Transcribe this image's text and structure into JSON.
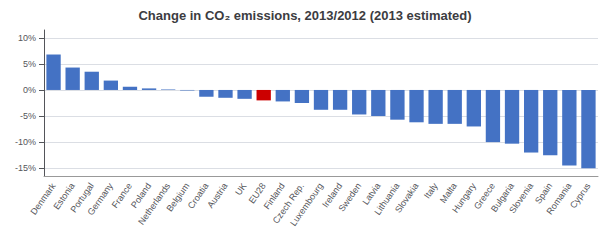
{
  "chart_data": {
    "type": "bar",
    "title": "Change in CO₂ emissions, 2013/2012 (2013 estimated)",
    "categories": [
      "Denmark",
      "Estonia",
      "Portugal",
      "Germany",
      "France",
      "Poland",
      "Netherlands",
      "Belgium",
      "Croatia",
      "Austria",
      "UK",
      "EU28",
      "Finland",
      "Czech Rep.",
      "Luxembourg",
      "Ireland",
      "Sweden",
      "Latvia",
      "Lithuania",
      "Slovakia",
      "Italy",
      "Malta",
      "Hungary",
      "Greece",
      "Bulgaria",
      "Slovenia",
      "Spain",
      "Romania",
      "Cyprus"
    ],
    "values": [
      6.8,
      4.3,
      3.5,
      1.8,
      0.6,
      0.3,
      0.1,
      -0.1,
      -1.3,
      -1.5,
      -1.7,
      -2.0,
      -2.2,
      -2.5,
      -3.8,
      -3.8,
      -4.7,
      -5.0,
      -5.7,
      -6.2,
      -6.5,
      -6.5,
      -7.0,
      -10.0,
      -10.3,
      -12.0,
      -12.5,
      -14.5,
      -15.0
    ],
    "colors": [
      "#4472C4",
      "#4472C4",
      "#4472C4",
      "#4472C4",
      "#4472C4",
      "#4472C4",
      "#4472C4",
      "#4472C4",
      "#4472C4",
      "#4472C4",
      "#4472C4",
      "#CC0000",
      "#4472C4",
      "#4472C4",
      "#4472C4",
      "#4472C4",
      "#4472C4",
      "#4472C4",
      "#4472C4",
      "#4472C4",
      "#4472C4",
      "#4472C4",
      "#4472C4",
      "#4472C4",
      "#4472C4",
      "#4472C4",
      "#4472C4",
      "#4472C4",
      "#4472C4"
    ],
    "ylim": [
      -16.5,
      11.5
    ],
    "yticks": [
      {
        "value": -15,
        "label": "-15%"
      },
      {
        "value": -10,
        "label": "-10%"
      },
      {
        "value": -5,
        "label": "-5%"
      },
      {
        "value": 0,
        "label": "0%"
      },
      {
        "value": 5,
        "label": "5%"
      },
      {
        "value": 10,
        "label": "10%"
      }
    ],
    "grid": true
  }
}
